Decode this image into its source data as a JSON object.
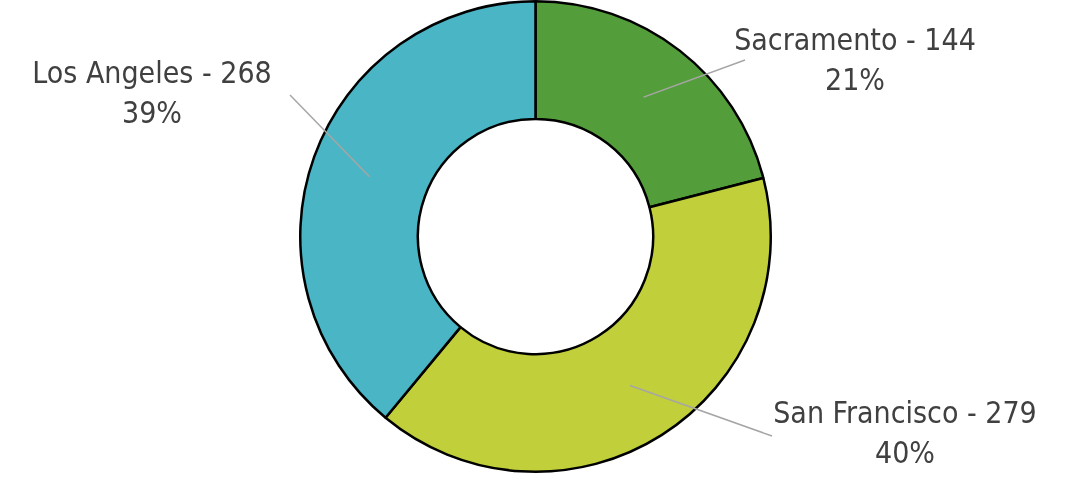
{
  "chart_data": {
    "type": "donut",
    "categories": [
      "Sacramento - 144",
      "San Francisco - 279",
      "Los Angeles - 268"
    ],
    "values": [
      21,
      40,
      39
    ],
    "colors": [
      "#539e3b",
      "#c0cf3a",
      "#4ab5c4"
    ],
    "value_labels": [
      "21%",
      "40%",
      "39%"
    ],
    "legend": false
  }
}
